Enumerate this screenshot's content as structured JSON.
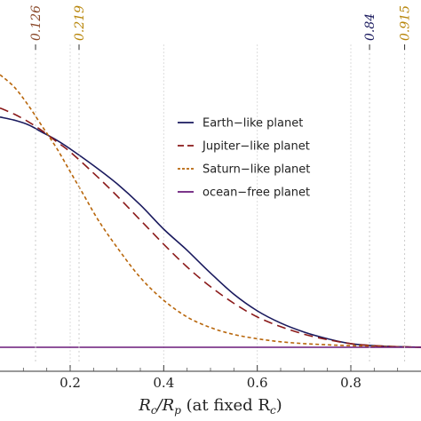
{
  "chart_data": {
    "type": "line",
    "title": "",
    "xlabel": {
      "main": "R",
      "sub1": "c",
      "slash": "/R",
      "sub2": "p",
      "paren": " (at fixed R",
      "sub3": "c",
      "close": ")"
    },
    "ylabel": "",
    "xlim": [
      0.05,
      0.95
    ],
    "ylim": [
      -0.05,
      1.0
    ],
    "x_ticks": [
      {
        "value": 0.2,
        "label": "0.2"
      },
      {
        "value": 0.4,
        "label": "0.4"
      },
      {
        "value": 0.6,
        "label": "0.6"
      },
      {
        "value": 0.8,
        "label": "0.8"
      }
    ],
    "top_markers": [
      {
        "value": 0.126,
        "label": "0.126",
        "color": "#8b4a2b"
      },
      {
        "value": 0.219,
        "label": "0.219",
        "color": "#b8860b"
      },
      {
        "value": 0.84,
        "label": "0.84",
        "color": "#1a1a5e"
      },
      {
        "value": 0.915,
        "label": "0.915",
        "color": "#b8860b"
      }
    ],
    "legend_position": "right",
    "series": [
      {
        "name": "Earth−like planet",
        "color": "#1a1a5e",
        "dash": "solid",
        "x": [
          0.05,
          0.08,
          0.11,
          0.14,
          0.17,
          0.2,
          0.25,
          0.3,
          0.35,
          0.4,
          0.45,
          0.5,
          0.55,
          0.6,
          0.65,
          0.7,
          0.75,
          0.8,
          0.85,
          0.9,
          0.95
        ],
        "y": [
          0.76,
          0.75,
          0.735,
          0.71,
          0.685,
          0.655,
          0.6,
          0.54,
          0.47,
          0.39,
          0.32,
          0.245,
          0.175,
          0.12,
          0.08,
          0.05,
          0.028,
          0.012,
          0.005,
          0.002,
          0.0
        ]
      },
      {
        "name": "Jupiter−like planet",
        "color": "#8b1a1a",
        "dash": "long-dash",
        "x": [
          0.05,
          0.08,
          0.11,
          0.14,
          0.17,
          0.2,
          0.25,
          0.3,
          0.35,
          0.4,
          0.45,
          0.5,
          0.55,
          0.6,
          0.65,
          0.7,
          0.75,
          0.8,
          0.85,
          0.9,
          0.95
        ],
        "y": [
          0.79,
          0.77,
          0.745,
          0.715,
          0.68,
          0.645,
          0.575,
          0.5,
          0.42,
          0.34,
          0.265,
          0.2,
          0.145,
          0.1,
          0.068,
          0.043,
          0.025,
          0.012,
          0.005,
          0.002,
          0.0
        ]
      },
      {
        "name": "Saturn−like planet",
        "color": "#b8660b",
        "dash": "short-dash",
        "x": [
          0.05,
          0.08,
          0.11,
          0.14,
          0.17,
          0.2,
          0.23,
          0.26,
          0.3,
          0.35,
          0.4,
          0.45,
          0.5,
          0.55,
          0.6,
          0.65,
          0.7,
          0.75,
          0.8,
          0.85,
          0.9,
          0.95
        ],
        "y": [
          0.9,
          0.86,
          0.8,
          0.73,
          0.66,
          0.58,
          0.5,
          0.42,
          0.33,
          0.23,
          0.155,
          0.1,
          0.065,
          0.042,
          0.028,
          0.018,
          0.012,
          0.008,
          0.005,
          0.003,
          0.001,
          0.0
        ]
      },
      {
        "name": "ocean−free planet",
        "color": "#6a1a7a",
        "dash": "solid",
        "x": [
          0.05,
          0.95
        ],
        "y": [
          0.0,
          0.0
        ]
      }
    ]
  }
}
